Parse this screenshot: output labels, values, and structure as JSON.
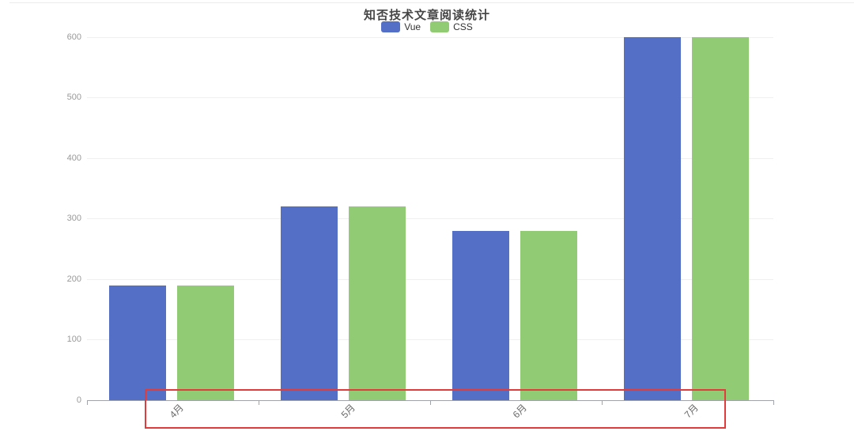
{
  "chart_data": {
    "type": "bar",
    "title": "知否技术文章阅读统计",
    "categories": [
      "4月",
      "5月",
      "6月",
      "7月"
    ],
    "series": [
      {
        "name": "Vue",
        "color": "#5470c6",
        "values": [
          190,
          320,
          280,
          600
        ]
      },
      {
        "name": "CSS",
        "color": "#91cc75",
        "values": [
          190,
          320,
          280,
          600
        ]
      }
    ],
    "xlabel": "",
    "ylabel": "",
    "ylim": [
      0,
      600
    ],
    "y_ticks": [
      0,
      100,
      200,
      300,
      400,
      500,
      600
    ],
    "grid": true,
    "legend_position": "top-center",
    "x_label_rotation_deg": 45
  },
  "annotation": {
    "type": "rectangle-highlight",
    "color": "#e03c3c"
  },
  "theme": {
    "background": "#ffffff",
    "grid_line_color": "#f0f0f0",
    "axis_line_color": "#a0a4aa",
    "y_label_color": "#999999",
    "x_label_color": "#666666",
    "title_color": "#464646",
    "legend_text_color": "#333333",
    "frame_line_color": "#ececec"
  }
}
